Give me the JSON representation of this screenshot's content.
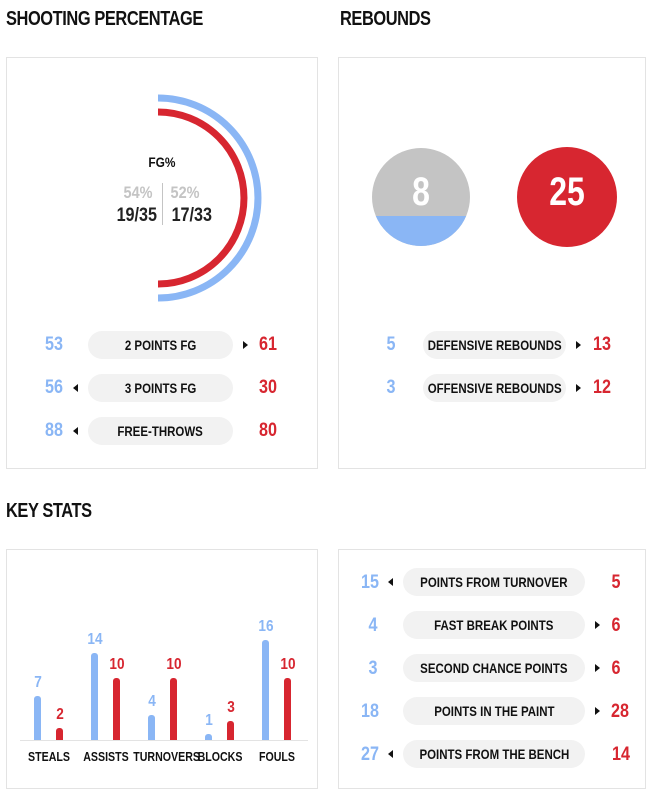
{
  "sections": {
    "shooting": "SHOOTING PERCENTAGE",
    "rebounds": "REBOUNDS",
    "key_stats": "KEY STATS"
  },
  "colors": {
    "blue": "#8ab6f5",
    "red": "#d72630",
    "gray": "#c4c4c4"
  },
  "fg": {
    "label": "FG%",
    "left_pct": "54%",
    "right_pct": "52%",
    "left_made": "19/35",
    "right_made": "17/33",
    "left_pct_value": 54,
    "right_pct_value": 52
  },
  "shooting_rows": [
    {
      "label": "2 POINTS FG",
      "left": "53",
      "right": "61",
      "arrow": "right"
    },
    {
      "label": "3 POINTS FG",
      "left": "56",
      "right": "30",
      "arrow": "left"
    },
    {
      "label": "FREE-THROWS",
      "left": "88",
      "right": "80",
      "arrow": "left"
    }
  ],
  "rebounds": {
    "left_total": "8",
    "right_total": "25",
    "rows": [
      {
        "label": "DEFENSIVE REBOUNDS",
        "left": "5",
        "right": "13",
        "arrow": "right"
      },
      {
        "label": "OFFENSIVE REBOUNDS",
        "left": "3",
        "right": "12",
        "arrow": "right"
      }
    ]
  },
  "chart_data": {
    "type": "bar",
    "categories": [
      "STEALS",
      "ASSISTS",
      "TURNOVERS",
      "BLOCKS",
      "FOULS"
    ],
    "series": [
      {
        "values": [
          7,
          14,
          4,
          1,
          16
        ]
      },
      {
        "values": [
          2,
          10,
          10,
          3,
          10
        ]
      }
    ]
  },
  "key_rows": [
    {
      "label": "POINTS FROM TURNOVER",
      "left": "15",
      "right": "5",
      "arrow": "left"
    },
    {
      "label": "FAST BREAK POINTS",
      "left": "4",
      "right": "6",
      "arrow": "right"
    },
    {
      "label": "SECOND CHANCE POINTS",
      "left": "3",
      "right": "6",
      "arrow": "right"
    },
    {
      "label": "POINTS IN THE PAINT",
      "left": "18",
      "right": "28",
      "arrow": "right"
    },
    {
      "label": "POINTS FROM THE BENCH",
      "left": "27",
      "right": "14",
      "arrow": "left"
    }
  ]
}
